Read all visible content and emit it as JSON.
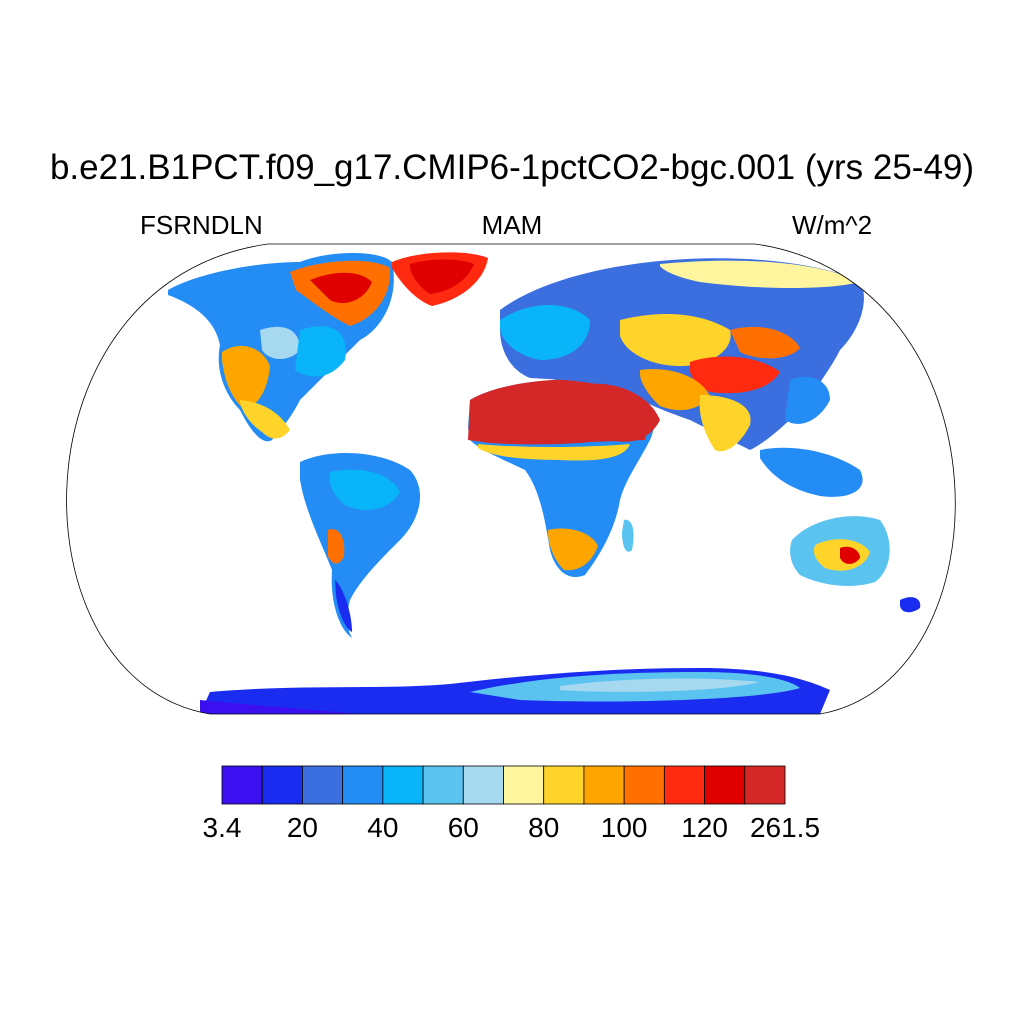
{
  "title": "b.e21.B1PCT.f09_g17.CMIP6-1pctCO2-bgc.001 (yrs 25-49)",
  "left_string": "FSRNDLN",
  "center_string": "MAM",
  "right_string": "W/m^2",
  "colorbar": {
    "colors": [
      "#3B0FF0",
      "#1A2CF0",
      "#3B6FE0",
      "#238CF5",
      "#0AB4F8",
      "#5BC3F0",
      "#A6D8F0",
      "#FFF59E",
      "#FFD42A",
      "#FFA500",
      "#FF7000",
      "#FF2A10",
      "#E00000",
      "#D42828"
    ],
    "labels": [
      "3.4",
      "20",
      "40",
      "60",
      "80",
      "100",
      "120",
      "261.5"
    ]
  }
}
